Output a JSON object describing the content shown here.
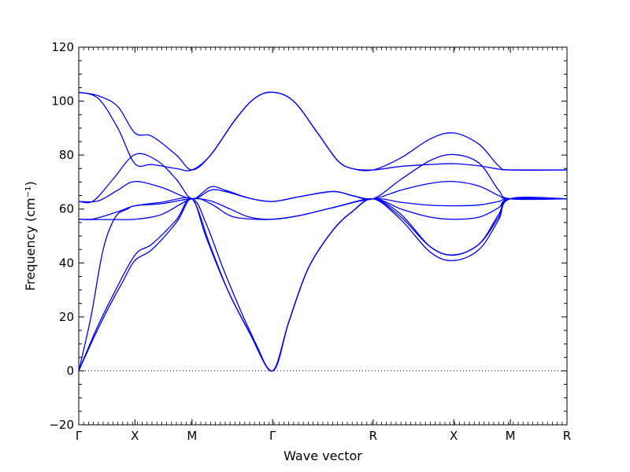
{
  "chart_data": {
    "type": "line",
    "xlabel": "Wave vector",
    "ylabel": "Frequency (cm⁻¹)",
    "ylim": [
      -20,
      120
    ],
    "yticks": [
      -20,
      0,
      20,
      40,
      60,
      80,
      100,
      120
    ],
    "xlim": [
      0,
      1
    ],
    "xticks": [
      {
        "x": 0.0,
        "label": "Γ"
      },
      {
        "x": 0.115,
        "label": "X"
      },
      {
        "x": 0.232,
        "label": "M"
      },
      {
        "x": 0.397,
        "label": "Γ"
      },
      {
        "x": 0.603,
        "label": "R"
      },
      {
        "x": 0.768,
        "label": "X"
      },
      {
        "x": 0.884,
        "label": "M"
      },
      {
        "x": 1.0,
        "label": "R"
      }
    ],
    "zero_line": true,
    "line_color": "#0000ff",
    "series": [
      {
        "points": [
          [
            0,
            103.3
          ],
          [
            0.04,
            102
          ],
          [
            0.08,
            98
          ],
          [
            0.115,
            88.2
          ],
          [
            0.15,
            87
          ],
          [
            0.2,
            80
          ],
          [
            0.232,
            74.5
          ],
          [
            0.27,
            80
          ],
          [
            0.32,
            93
          ],
          [
            0.36,
            101
          ],
          [
            0.397,
            103.3
          ],
          [
            0.44,
            100
          ],
          [
            0.49,
            88
          ],
          [
            0.53,
            78
          ],
          [
            0.56,
            75
          ],
          [
            0.603,
            74.5
          ],
          [
            0.66,
            79
          ],
          [
            0.72,
            86
          ],
          [
            0.768,
            88.2
          ],
          [
            0.82,
            84
          ],
          [
            0.86,
            76
          ],
          [
            0.884,
            74.5
          ],
          [
            1,
            74.5
          ]
        ]
      },
      {
        "points": [
          [
            0,
            103.3
          ],
          [
            0.04,
            101
          ],
          [
            0.08,
            90
          ],
          [
            0.115,
            76.8
          ],
          [
            0.15,
            76.5
          ],
          [
            0.2,
            75
          ],
          [
            0.232,
            74.5
          ],
          [
            0.27,
            80
          ],
          [
            0.32,
            93
          ],
          [
            0.36,
            101
          ],
          [
            0.397,
            103.3
          ],
          [
            0.44,
            100
          ],
          [
            0.49,
            88
          ],
          [
            0.53,
            78
          ],
          [
            0.56,
            75
          ],
          [
            0.603,
            74.5
          ],
          [
            0.66,
            75.8
          ],
          [
            0.72,
            76.5
          ],
          [
            0.768,
            76.8
          ],
          [
            0.82,
            76
          ],
          [
            0.86,
            74.8
          ],
          [
            0.884,
            74.5
          ],
          [
            1,
            74.5
          ]
        ]
      },
      {
        "points": [
          [
            0,
            62.8
          ],
          [
            0.03,
            63
          ],
          [
            0.07,
            71
          ],
          [
            0.115,
            80.2
          ],
          [
            0.16,
            78
          ],
          [
            0.2,
            71
          ],
          [
            0.232,
            63.8
          ],
          [
            0.27,
            68.2
          ],
          [
            0.3,
            67
          ],
          [
            0.35,
            64
          ],
          [
            0.397,
            62.8
          ],
          [
            0.45,
            64.5
          ],
          [
            0.52,
            66.5
          ],
          [
            0.56,
            65
          ],
          [
            0.603,
            63.8
          ],
          [
            0.66,
            71
          ],
          [
            0.72,
            78
          ],
          [
            0.768,
            80.2
          ],
          [
            0.82,
            77
          ],
          [
            0.86,
            67
          ],
          [
            0.884,
            63.8
          ],
          [
            1,
            63.8
          ]
        ]
      },
      {
        "points": [
          [
            0,
            62.8
          ],
          [
            0.04,
            63
          ],
          [
            0.08,
            67
          ],
          [
            0.115,
            70.2
          ],
          [
            0.17,
            68
          ],
          [
            0.232,
            63.8
          ],
          [
            0.27,
            67
          ],
          [
            0.3,
            66.5
          ],
          [
            0.35,
            64
          ],
          [
            0.397,
            62.8
          ],
          [
            0.45,
            64.5
          ],
          [
            0.52,
            66.5
          ],
          [
            0.56,
            65
          ],
          [
            0.603,
            63.8
          ],
          [
            0.66,
            67
          ],
          [
            0.72,
            69.5
          ],
          [
            0.768,
            70.2
          ],
          [
            0.82,
            68.5
          ],
          [
            0.86,
            65
          ],
          [
            0.884,
            63.8
          ],
          [
            1,
            63.8
          ]
        ]
      },
      {
        "points": [
          [
            0,
            56.2
          ],
          [
            0.03,
            56.3
          ],
          [
            0.08,
            59
          ],
          [
            0.115,
            61.2
          ],
          [
            0.17,
            62
          ],
          [
            0.232,
            63.8
          ],
          [
            0.27,
            63
          ],
          [
            0.31,
            60
          ],
          [
            0.35,
            57
          ],
          [
            0.397,
            56.2
          ],
          [
            0.45,
            57.5
          ],
          [
            0.52,
            60.5
          ],
          [
            0.603,
            63.8
          ],
          [
            0.66,
            62.5
          ],
          [
            0.72,
            61.4
          ],
          [
            0.768,
            61.2
          ],
          [
            0.82,
            61.5
          ],
          [
            0.86,
            62.8
          ],
          [
            0.884,
            63.8
          ],
          [
            1,
            63.8
          ]
        ]
      },
      {
        "points": [
          [
            0,
            56.2
          ],
          [
            0.03,
            56.1
          ],
          [
            0.08,
            56.1
          ],
          [
            0.115,
            56.2
          ],
          [
            0.17,
            58
          ],
          [
            0.232,
            63.8
          ],
          [
            0.27,
            62
          ],
          [
            0.31,
            57.5
          ],
          [
            0.35,
            56.3
          ],
          [
            0.397,
            56.2
          ],
          [
            0.45,
            57.5
          ],
          [
            0.52,
            60.5
          ],
          [
            0.603,
            63.8
          ],
          [
            0.66,
            60
          ],
          [
            0.72,
            57
          ],
          [
            0.768,
            56.2
          ],
          [
            0.82,
            57
          ],
          [
            0.86,
            60.5
          ],
          [
            0.884,
            63.8
          ],
          [
            1,
            63.8
          ]
        ]
      },
      {
        "points": [
          [
            0,
            0
          ],
          [
            0.025,
            20
          ],
          [
            0.05,
            45
          ],
          [
            0.075,
            57
          ],
          [
            0.1,
            60
          ],
          [
            0.115,
            61.2
          ],
          [
            0.17,
            62.5
          ],
          [
            0.232,
            63.8
          ],
          [
            0.26,
            55
          ],
          [
            0.3,
            36
          ],
          [
            0.35,
            15
          ],
          [
            0.397,
            0
          ],
          [
            0.43,
            18
          ],
          [
            0.47,
            38
          ],
          [
            0.52,
            52
          ],
          [
            0.56,
            59
          ],
          [
            0.603,
            63.8
          ],
          [
            0.66,
            58
          ],
          [
            0.72,
            46
          ],
          [
            0.768,
            43
          ],
          [
            0.82,
            47
          ],
          [
            0.86,
            58
          ],
          [
            0.884,
            63.8
          ],
          [
            1,
            63.8
          ]
        ]
      },
      {
        "points": [
          [
            0,
            0
          ],
          [
            0.03,
            12
          ],
          [
            0.06,
            23
          ],
          [
            0.09,
            33
          ],
          [
            0.115,
            40.9
          ],
          [
            0.15,
            45
          ],
          [
            0.2,
            55
          ],
          [
            0.232,
            63.8
          ],
          [
            0.26,
            50
          ],
          [
            0.3,
            32
          ],
          [
            0.35,
            14
          ],
          [
            0.397,
            0
          ],
          [
            0.43,
            18
          ],
          [
            0.47,
            38
          ],
          [
            0.52,
            52
          ],
          [
            0.56,
            59
          ],
          [
            0.603,
            63.8
          ],
          [
            0.66,
            56
          ],
          [
            0.72,
            44
          ],
          [
            0.768,
            40.9
          ],
          [
            0.82,
            45
          ],
          [
            0.86,
            56
          ],
          [
            0.884,
            63.8
          ],
          [
            1,
            63.8
          ]
        ]
      },
      {
        "points": [
          [
            0,
            0
          ],
          [
            0.035,
            15
          ],
          [
            0.07,
            28
          ],
          [
            0.115,
            42.9
          ],
          [
            0.15,
            47
          ],
          [
            0.2,
            56
          ],
          [
            0.232,
            63.8
          ],
          [
            0.27,
            46
          ],
          [
            0.31,
            28
          ],
          [
            0.36,
            11
          ],
          [
            0.397,
            0
          ],
          [
            0.43,
            18
          ],
          [
            0.47,
            38
          ],
          [
            0.52,
            52
          ],
          [
            0.56,
            59
          ],
          [
            0.603,
            63.8
          ],
          [
            0.66,
            57
          ],
          [
            0.72,
            46
          ],
          [
            0.768,
            42.9
          ],
          [
            0.82,
            47
          ],
          [
            0.86,
            57
          ],
          [
            0.884,
            63.8
          ],
          [
            1,
            63.8
          ]
        ]
      }
    ]
  }
}
